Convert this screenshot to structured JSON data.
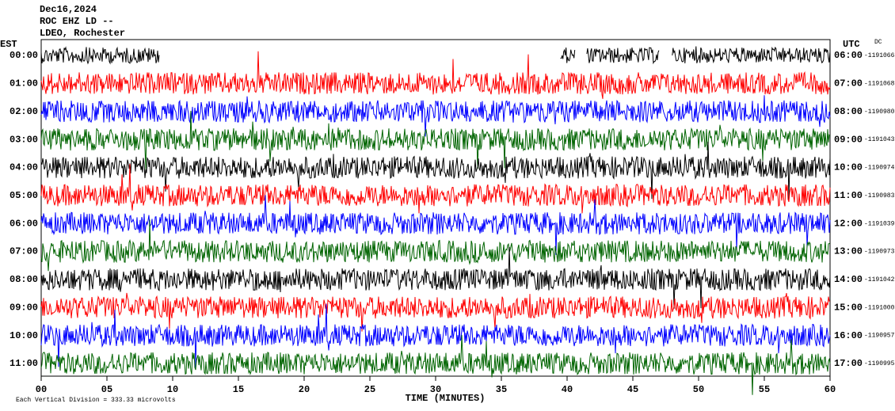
{
  "chart_data": {
    "type": "helicorder",
    "title": "Dec16,2024",
    "station": "ROC EHZ LD --",
    "network": "LDEO, Rochester",
    "left_axis_label": "EST",
    "right_axis_label": "UTC",
    "dc_label": "DC",
    "xlabel": "TIME (MINUTES)",
    "scale_note": "Each Vertical Division =  333.33 microvolts",
    "xlim": [
      0,
      60
    ],
    "xticks": [
      {
        "value": 0,
        "label": "00"
      },
      {
        "value": 5,
        "label": "05"
      },
      10,
      15,
      20,
      25,
      30,
      35,
      40,
      45,
      50,
      55,
      60
    ],
    "rows_left": [
      "00:00",
      "01:00",
      "02:00",
      "03:00",
      "04:00",
      "05:00",
      "06:00",
      "07:00",
      "08:00",
      "09:00",
      "10:00",
      "11:00"
    ],
    "rows_right": [
      "06:00",
      "07:00",
      "08:00",
      "09:00",
      "10:00",
      "11:00",
      "12:00",
      "13:00",
      "14:00",
      "15:00",
      "16:00",
      "17:00"
    ],
    "dc_values": [
      -1191066,
      -1191068,
      -1190980,
      -1191043,
      -1190974,
      -1190983,
      -1191039,
      -1190973,
      -1191042,
      -1191000,
      -1190957,
      -1190995
    ],
    "colors": [
      "#000000",
      "#ff0000",
      "#0000ff",
      "#006400"
    ]
  }
}
